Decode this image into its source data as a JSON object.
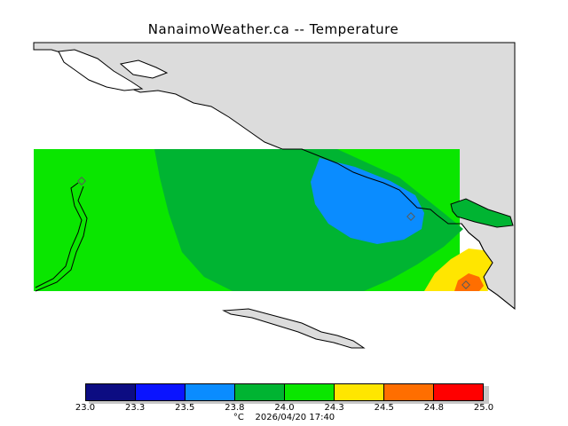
{
  "title": "NanaimoWeather.ca -- Temperature",
  "legend": {
    "colors": [
      "#0c0c82",
      "#0a14ff",
      "#0a8cff",
      "#00b432",
      "#0ae600",
      "#ffe600",
      "#ff6e00",
      "#ff0000"
    ],
    "ticks": [
      "23.0",
      "23.3",
      "23.5",
      "23.8",
      "24.0",
      "24.3",
      "24.5",
      "24.8",
      "25.0"
    ]
  },
  "footer": {
    "unit": "°C",
    "timestamp": "2026/04/20 17:40"
  },
  "palette": {
    "land": "#dcdcdc",
    "water": "#ffffff",
    "coast": "#000000",
    "marker": "#5a5a5a"
  }
}
